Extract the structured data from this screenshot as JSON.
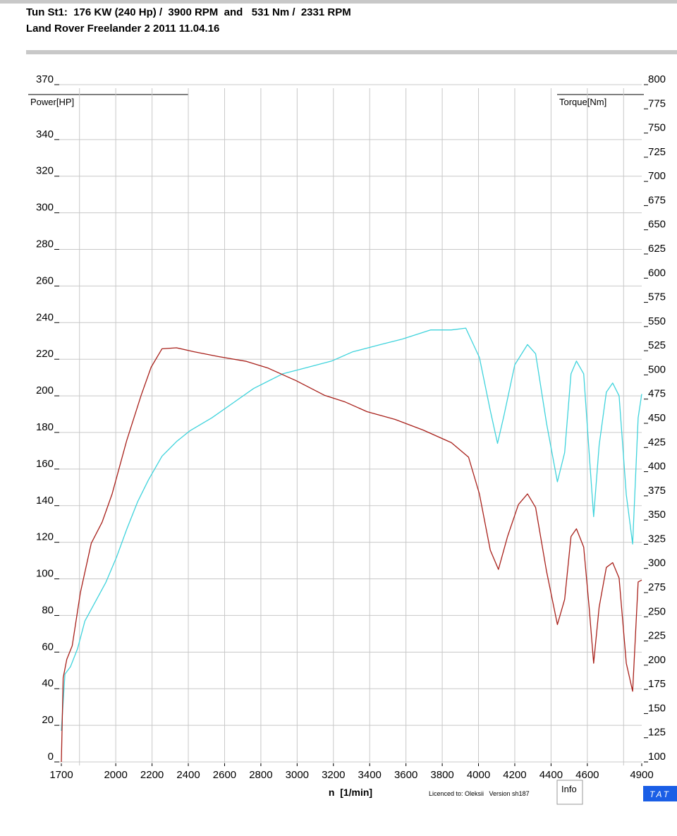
{
  "header": {
    "title": "Tun St1:  176 KW (240 Hp) /  3900 RPM  and   531 Nm /  2331 RPM",
    "subtitle": "Land Rover Freelander 2 2011 11.04.16"
  },
  "chart_data": {
    "type": "line",
    "ylabel": "Power[HP]",
    "y2label": "Torque[Nm]",
    "xlabel": "n  [1/min]",
    "xlim": [
      1700,
      4900
    ],
    "xticks": [
      1700,
      2000,
      2200,
      2400,
      2600,
      2800,
      3000,
      3200,
      3400,
      3600,
      3800,
      4000,
      4200,
      4400,
      4600,
      4900
    ],
    "xgrid": [
      1800,
      2000,
      2200,
      2400,
      2600,
      2800,
      3000,
      3200,
      3400,
      3600,
      3800,
      4000,
      4200,
      4400,
      4600,
      4800
    ],
    "ylim": [
      0,
      370
    ],
    "yticks": [
      0,
      20,
      40,
      60,
      80,
      100,
      120,
      140,
      160,
      180,
      200,
      220,
      240,
      260,
      280,
      300,
      320,
      340,
      370
    ],
    "y2lim": [
      100,
      800
    ],
    "y2ticks": [
      100,
      125,
      150,
      175,
      200,
      225,
      250,
      275,
      300,
      325,
      350,
      375,
      400,
      425,
      450,
      475,
      500,
      525,
      550,
      575,
      600,
      625,
      650,
      675,
      700,
      725,
      750,
      775,
      800
    ],
    "grid": true,
    "series": [
      {
        "name": "Power[HP]",
        "color": "#3fd3dc",
        "x": [
          1700,
          1720,
          1750,
          1790,
          1830,
          1890,
          1945,
          2005,
          2060,
          2120,
          2180,
          2255,
          2335,
          2410,
          2530,
          2645,
          2760,
          2920,
          3035,
          3190,
          3305,
          3460,
          3580,
          3735,
          3850,
          3930,
          4005,
          4065,
          4105,
          4140,
          4200,
          4270,
          4315,
          4375,
          4435,
          4475,
          4510,
          4540,
          4580,
          4610,
          4635,
          4665,
          4705,
          4740,
          4775,
          4815,
          4850,
          4880,
          4900
        ],
        "values": [
          17,
          48,
          52,
          62,
          77,
          88,
          98,
          112,
          127,
          142,
          154,
          167,
          175,
          181,
          188,
          196,
          204,
          212,
          215,
          219,
          224,
          228,
          231,
          236,
          236,
          237,
          221,
          192,
          174,
          189,
          217,
          228,
          223,
          185,
          153,
          169,
          212,
          219,
          212,
          169,
          134,
          173,
          202,
          207,
          200,
          146,
          119,
          188,
          201
        ]
      },
      {
        "name": "Torque[Nm]",
        "color": "#a8201a",
        "axis": "y2",
        "x": [
          1700,
          1710,
          1730,
          1760,
          1805,
          1865,
          1925,
          1980,
          2060,
          2140,
          2195,
          2255,
          2335,
          2430,
          2565,
          2720,
          2840,
          2995,
          3150,
          3265,
          3385,
          3540,
          3695,
          3850,
          3945,
          4005,
          4065,
          4110,
          4160,
          4220,
          4270,
          4315,
          4375,
          4435,
          4475,
          4510,
          4540,
          4580,
          4610,
          4635,
          4665,
          4705,
          4740,
          4775,
          4815,
          4850,
          4880,
          4900
        ],
        "values": [
          100,
          187,
          206,
          220,
          275,
          326,
          348,
          377,
          432,
          479,
          508,
          527,
          528,
          524,
          519,
          514,
          507,
          494,
          479,
          472,
          462,
          454,
          443,
          430,
          415,
          377,
          319,
          299,
          333,
          366,
          377,
          363,
          297,
          242,
          268,
          333,
          341,
          322,
          260,
          202,
          260,
          301,
          306,
          290,
          202,
          173,
          286,
          288
        ]
      }
    ]
  },
  "footer": {
    "licence": "Licenced to: Oleksii   Version sh187",
    "info": "Info",
    "logo": "TAT"
  }
}
